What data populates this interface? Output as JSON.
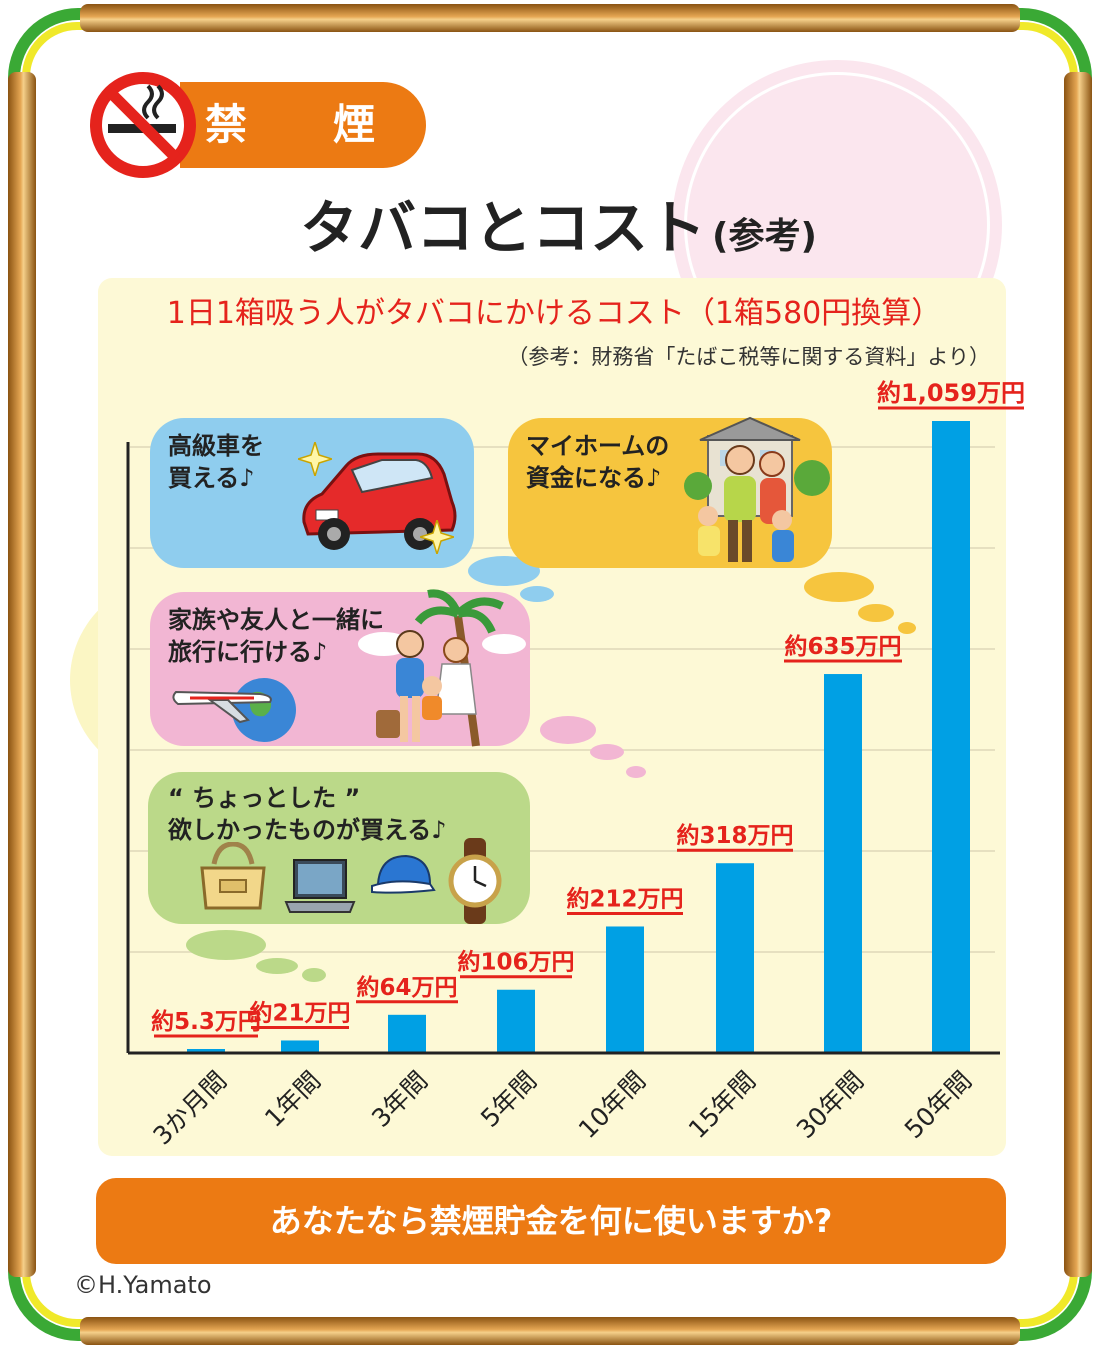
{
  "header": {
    "badge_label": "禁　煙",
    "title": "タバコとコスト",
    "title_suffix": "(参考)"
  },
  "chart_data": {
    "type": "bar",
    "title": "1日1箱吸う人がタバコにかけるコスト（1箱580円換算）",
    "subtitle": "（参考：財務省「たばこ税等に関する資料」より）",
    "categories": [
      "3か月間",
      "1年間",
      "3年間",
      "5年間",
      "10年間",
      "15年間",
      "30年間",
      "50年間"
    ],
    "values": [
      5.3,
      21,
      64,
      106,
      212,
      318,
      635,
      1059
    ],
    "value_labels": [
      "約5.3万円",
      "約21万円",
      "約64万円",
      "約106万円",
      "約212万円",
      "約318万円",
      "約635万円",
      "約1,059万円"
    ],
    "unit": "万円",
    "ylim": [
      0,
      1059
    ],
    "grid": true,
    "bar_color": "#00a0e4",
    "label_color": "#e5231c"
  },
  "bubbles": {
    "car": "高級車を\n買える♪",
    "home": "マイホームの\n資金になる♪",
    "travel": "家族や友人と一緒に\n旅行に行ける♪",
    "goods": "“ ちょっとした ”\n欲しかったものが買える♪"
  },
  "illustrations": [
    "car-illustration",
    "house-family-illustration",
    "airplane-globe-illustration",
    "beach-family-illustration",
    "bag-icon",
    "laptop-icon",
    "cap-icon",
    "watch-icon"
  ],
  "cta": "あなたなら禁煙貯金を何に使いますか?",
  "copyright": "©H.Yamato",
  "colors": {
    "accent_orange": "#ec7a13",
    "panel_bg": "#fdf9d6",
    "frame_green": "#3aa935",
    "frame_yellow": "#f0e92a"
  }
}
